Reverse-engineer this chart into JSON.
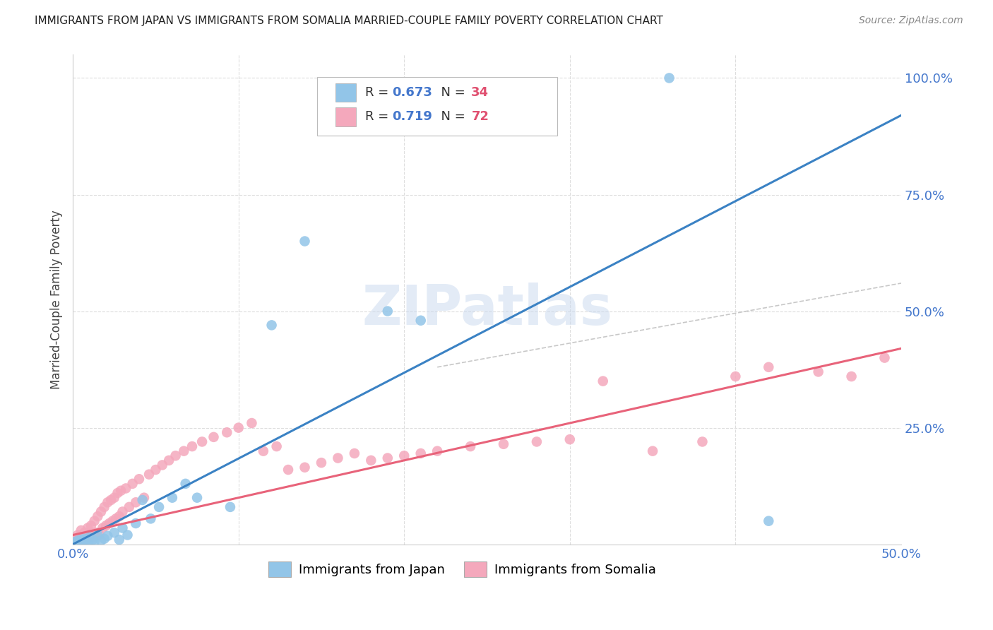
{
  "title": "IMMIGRANTS FROM JAPAN VS IMMIGRANTS FROM SOMALIA MARRIED-COUPLE FAMILY POVERTY CORRELATION CHART",
  "source": "Source: ZipAtlas.com",
  "ylabel": "Married-Couple Family Poverty",
  "xlim": [
    0.0,
    0.5
  ],
  "ylim": [
    0.0,
    1.05
  ],
  "xticks": [
    0.0,
    0.1,
    0.2,
    0.3,
    0.4,
    0.5
  ],
  "xticklabels": [
    "0.0%",
    "",
    "",
    "",
    "",
    "50.0%"
  ],
  "yticks": [
    0.25,
    0.5,
    0.75,
    1.0
  ],
  "yticklabels": [
    "25.0%",
    "50.0%",
    "75.0%",
    "100.0%"
  ],
  "japan_R": 0.673,
  "japan_N": 34,
  "somalia_R": 0.719,
  "somalia_N": 72,
  "japan_color": "#92C5E8",
  "somalia_color": "#F4A8BC",
  "japan_line_color": "#3B82C4",
  "somalia_line_color": "#E8637A",
  "japan_line_x0": 0.0,
  "japan_line_y0": 0.0,
  "japan_line_x1": 0.5,
  "japan_line_y1": 0.92,
  "somalia_line_x0": 0.0,
  "somalia_line_y0": 0.02,
  "somalia_line_x1": 0.5,
  "somalia_line_y1": 0.42,
  "dash_line_x0": 0.22,
  "dash_line_y0": 0.38,
  "dash_line_x1": 0.5,
  "dash_line_y1": 0.56,
  "background_color": "#FFFFFF",
  "grid_color": "#DDDDDD",
  "watermark_text": "ZIPatlas",
  "japan_points_x": [
    0.001,
    0.002,
    0.003,
    0.004,
    0.005,
    0.006,
    0.007,
    0.008,
    0.009,
    0.01,
    0.012,
    0.013,
    0.015,
    0.017,
    0.019,
    0.021,
    0.025,
    0.028,
    0.03,
    0.033,
    0.038,
    0.042,
    0.047,
    0.052,
    0.06,
    0.068,
    0.075,
    0.095,
    0.12,
    0.14,
    0.19,
    0.21,
    0.36,
    0.42
  ],
  "japan_points_y": [
    0.005,
    0.003,
    0.008,
    0.002,
    0.01,
    0.005,
    0.012,
    0.008,
    0.003,
    0.015,
    0.01,
    0.006,
    0.02,
    0.008,
    0.012,
    0.018,
    0.025,
    0.01,
    0.035,
    0.02,
    0.045,
    0.095,
    0.055,
    0.08,
    0.1,
    0.13,
    0.1,
    0.08,
    0.47,
    0.65,
    0.5,
    0.48,
    1.0,
    0.05
  ],
  "somalia_points_x": [
    0.001,
    0.002,
    0.003,
    0.004,
    0.005,
    0.006,
    0.007,
    0.008,
    0.009,
    0.01,
    0.011,
    0.012,
    0.013,
    0.014,
    0.015,
    0.016,
    0.017,
    0.018,
    0.019,
    0.02,
    0.021,
    0.022,
    0.023,
    0.024,
    0.025,
    0.026,
    0.027,
    0.028,
    0.029,
    0.03,
    0.032,
    0.034,
    0.036,
    0.038,
    0.04,
    0.043,
    0.046,
    0.05,
    0.054,
    0.058,
    0.062,
    0.067,
    0.072,
    0.078,
    0.085,
    0.093,
    0.1,
    0.108,
    0.115,
    0.123,
    0.13,
    0.14,
    0.15,
    0.16,
    0.17,
    0.18,
    0.19,
    0.2,
    0.21,
    0.22,
    0.24,
    0.26,
    0.28,
    0.3,
    0.32,
    0.35,
    0.38,
    0.4,
    0.42,
    0.45,
    0.47,
    0.49
  ],
  "somalia_points_y": [
    0.01,
    0.005,
    0.02,
    0.008,
    0.03,
    0.015,
    0.025,
    0.01,
    0.035,
    0.02,
    0.04,
    0.015,
    0.05,
    0.025,
    0.06,
    0.02,
    0.07,
    0.035,
    0.08,
    0.04,
    0.09,
    0.045,
    0.095,
    0.05,
    0.1,
    0.055,
    0.11,
    0.06,
    0.115,
    0.07,
    0.12,
    0.08,
    0.13,
    0.09,
    0.14,
    0.1,
    0.15,
    0.16,
    0.17,
    0.18,
    0.19,
    0.2,
    0.21,
    0.22,
    0.23,
    0.24,
    0.25,
    0.26,
    0.2,
    0.21,
    0.16,
    0.165,
    0.175,
    0.185,
    0.195,
    0.18,
    0.185,
    0.19,
    0.195,
    0.2,
    0.21,
    0.215,
    0.22,
    0.225,
    0.35,
    0.2,
    0.22,
    0.36,
    0.38,
    0.37,
    0.36,
    0.4
  ],
  "legend_label_japan": "Immigrants from Japan",
  "legend_label_somalia": "Immigrants from Somalia"
}
